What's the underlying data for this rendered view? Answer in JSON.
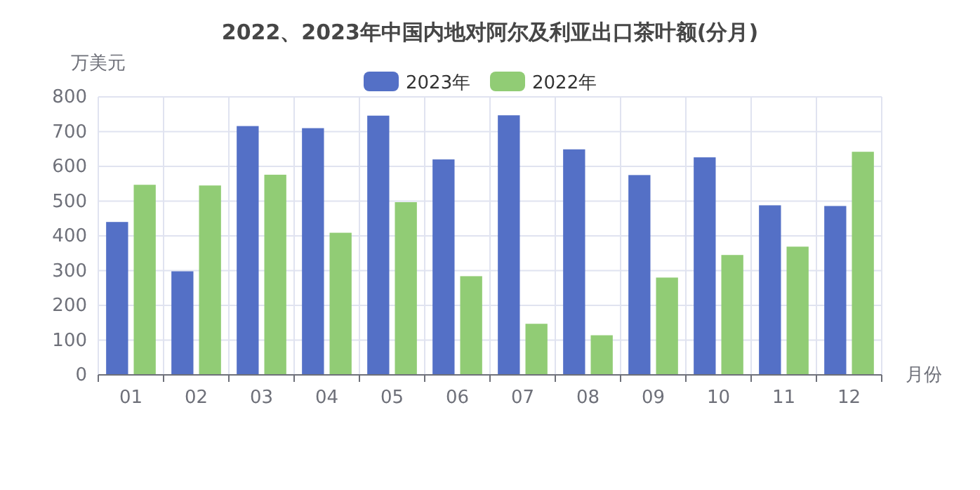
{
  "chart_data": {
    "type": "bar",
    "title": "2022、2023年中国内地对阿尔及利亚出口茶叶额(分月)",
    "xlabel": "月份",
    "ylabel": "万美元",
    "categories": [
      "01",
      "02",
      "03",
      "04",
      "05",
      "06",
      "07",
      "08",
      "09",
      "10",
      "11",
      "12"
    ],
    "series": [
      {
        "name": "2023年",
        "color": "#5470c6",
        "values": [
          440,
          298,
          716,
          710,
          746,
          620,
          747,
          649,
          575,
          626,
          488,
          486
        ]
      },
      {
        "name": "2022年",
        "color": "#91cc75",
        "values": [
          547,
          545,
          576,
          409,
          497,
          284,
          147,
          114,
          280,
          345,
          369,
          642
        ]
      }
    ],
    "ylim": [
      0,
      800
    ],
    "yticks": [
      0,
      100,
      200,
      300,
      400,
      500,
      600,
      700,
      800
    ],
    "grid": true,
    "legend": "top"
  }
}
